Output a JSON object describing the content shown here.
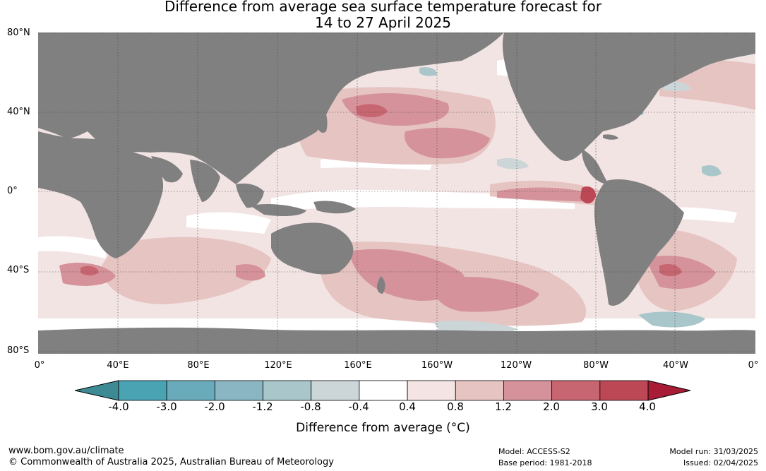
{
  "title": {
    "line1": "Difference from average sea surface temperature forecast for",
    "line2": "14 to 27 April 2025"
  },
  "map": {
    "lat_labels": [
      "80°N",
      "40°N",
      "0°",
      "40°S",
      "80°S"
    ],
    "lon_labels": [
      "0°",
      "40°E",
      "80°E",
      "120°E",
      "160°E",
      "160°W",
      "120°W",
      "80°W",
      "40°W",
      "0°"
    ],
    "land_color": "#808080",
    "ocean_base_color": "#f3e4e4"
  },
  "colorbar": {
    "ticks": [
      "-4.0",
      "-3.0",
      "-2.0",
      "-1.2",
      "-0.8",
      "-0.4",
      "0.4",
      "0.8",
      "1.2",
      "2.0",
      "3.0",
      "4.0"
    ],
    "colors": [
      "#3d8a94",
      "#4aa3b3",
      "#69abba",
      "#8ab6c3",
      "#a9c7cb",
      "#ccd6d8",
      "#ffffff",
      "#f4e4e3",
      "#e6c4c2",
      "#d5929a",
      "#c76670",
      "#bc4755",
      "#a81c35"
    ],
    "label": "Difference from average (°C)"
  },
  "footer": {
    "url": "www.bom.gov.au/climate",
    "copyright": "© Commonwealth of Australia 2025, Australian Bureau of Meteorology",
    "model": "Model: ACCESS-S2",
    "base_period": "Base period: 1981-2018",
    "model_run": "Model run: 31/03/2025",
    "issued": "Issued: 02/04/2025"
  }
}
